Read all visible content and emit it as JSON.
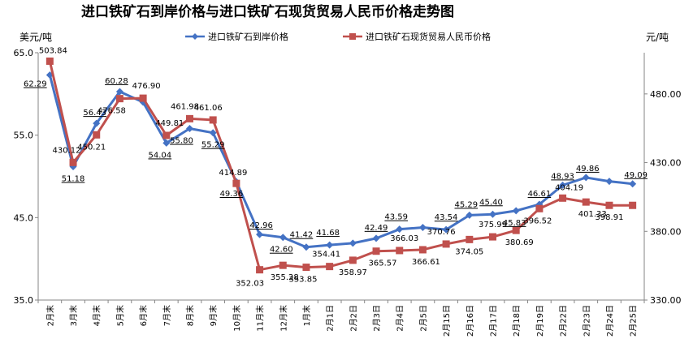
{
  "chart_data": {
    "type": "line",
    "title": "进口铁矿石到岸价格与进口铁矿石现货贸易人民币价格走势图",
    "left_unit": "美元/吨",
    "right_unit": "元/吨",
    "categories": [
      "2月末",
      "3月末",
      "4月末",
      "5月末",
      "6月末",
      "7月末",
      "8月末",
      "9月末",
      "10月末",
      "11月末",
      "12月末",
      "1月末",
      "2月1日",
      "2月2日",
      "2月3日",
      "2月4日",
      "2月5日",
      "2月15日",
      "2月16日",
      "2月17日",
      "2月18日",
      "2月19日",
      "2月22日",
      "2月23日",
      "2月24日",
      "2月25日"
    ],
    "y_left": {
      "min": 35.0,
      "max": 65.0,
      "ticks": [
        "35.0",
        "45.0",
        "55.0",
        "65.0"
      ]
    },
    "y_right": {
      "min": 330.0,
      "max": 510.0,
      "ticks": [
        "330.00",
        "380.00",
        "430.00",
        "480.00"
      ]
    },
    "legend_position": "top",
    "series": [
      {
        "name": "进口铁矿石到岸价格",
        "axis": "left",
        "color": "#4472C4",
        "marker": "diamond",
        "values": [
          62.29,
          51.18,
          56.43,
          60.28,
          59.0,
          54.04,
          55.8,
          55.29,
          49.36,
          42.96,
          42.6,
          41.42,
          41.68,
          41.9,
          42.49,
          43.59,
          43.8,
          43.54,
          45.29,
          45.4,
          45.83,
          46.61,
          48.93,
          49.86,
          49.4,
          49.09
        ],
        "labels": [
          "62.29",
          "51.18",
          "56.43",
          "60.28",
          "",
          "54.04",
          "55.80",
          "55.29",
          "49.36",
          "42.96",
          "42.60",
          "41.42",
          "41.68",
          "",
          "42.49",
          "43.59",
          "",
          "43.54",
          "45.29",
          "45.40",
          "45.83",
          "46.61",
          "48.93",
          "49.86",
          "",
          "49.09"
        ]
      },
      {
        "name": "进口铁矿石现货贸易人民币价格",
        "axis": "right",
        "color": "#C0504D",
        "marker": "square",
        "values": [
          503.84,
          430.12,
          450.21,
          476.58,
          476.9,
          449.81,
          461.98,
          461.06,
          414.89,
          352.03,
          355.28,
          353.85,
          354.41,
          358.97,
          365.57,
          366.03,
          366.61,
          370.76,
          374.05,
          375.99,
          380.69,
          396.52,
          404.19,
          401.33,
          398.91,
          398.91
        ],
        "labels": [
          "503.84",
          "430.12",
          "450.21",
          "476.58",
          "476.90",
          "449.81",
          "461.98",
          "461.06",
          "414.89",
          "352.03",
          "355.28",
          "353.85",
          "354.41",
          "358.97",
          "365.57",
          "366.03",
          "366.61",
          "370.76",
          "374.05",
          "375.99",
          "380.69",
          "396.52",
          "404.19",
          "401.33",
          "398.91",
          ""
        ]
      }
    ]
  }
}
